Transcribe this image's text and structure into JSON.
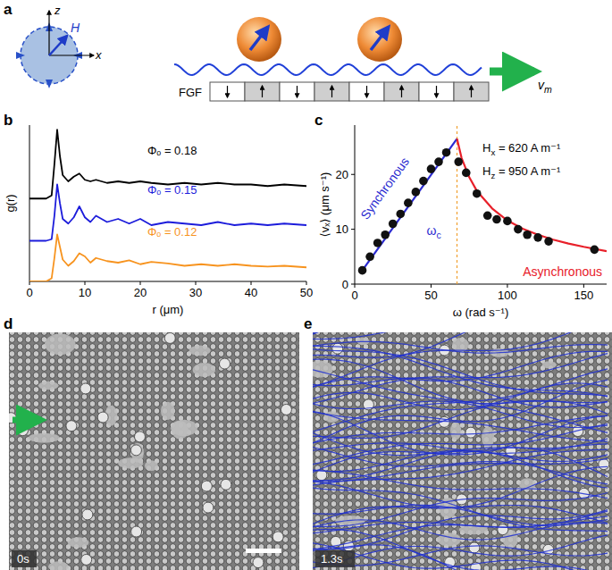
{
  "panel_labels": [
    "a",
    "b",
    "c",
    "d",
    "e"
  ],
  "diagram": {
    "axis_z": "z",
    "axis_x": "x",
    "field": "H",
    "substrate": "FGF",
    "velocity": {
      "main": "v",
      "sub": "m"
    }
  },
  "chart_data": [
    {
      "type": "line",
      "x_label": "r (μm)",
      "y_label": "g(r)",
      "x": [
        0,
        3,
        4,
        4.5,
        5,
        5.5,
        6,
        7,
        8,
        9,
        10,
        11,
        12,
        14,
        16,
        18,
        20,
        22,
        25,
        28,
        31,
        34,
        37,
        40,
        43,
        46,
        50
      ],
      "series": [
        {
          "name": "Φₒ = 0.18",
          "color": "#000000",
          "values": [
            5.3,
            5.3,
            5.5,
            7.5,
            9.7,
            8.0,
            6.8,
            6.4,
            6.7,
            6.9,
            6.5,
            6.4,
            6.5,
            6.3,
            6.4,
            6.3,
            6.4,
            6.3,
            6.2,
            6.3,
            6.2,
            6.3,
            6.2,
            6.2,
            6.1,
            6.2,
            6.1
          ]
        },
        {
          "name": "Φₒ = 0.15",
          "color": "#1c1cdb",
          "values": [
            2.6,
            2.6,
            2.7,
            4.2,
            6.2,
            5.0,
            4.0,
            3.7,
            4.1,
            4.8,
            4.1,
            3.8,
            4.2,
            3.8,
            4.0,
            3.7,
            4.0,
            3.6,
            3.8,
            3.7,
            3.6,
            3.8,
            3.6,
            3.7,
            3.6,
            3.7,
            3.6
          ]
        },
        {
          "name": "Φₒ = 0.12",
          "color": "#f7931e",
          "values": [
            0,
            0,
            0.2,
            1.5,
            3.0,
            2.2,
            1.4,
            1.0,
            1.3,
            1.8,
            1.6,
            1.2,
            1.5,
            1.3,
            1.2,
            1.35,
            1.1,
            1.25,
            1.15,
            1.0,
            1.1,
            1.0,
            1.1,
            1.0,
            0.95,
            1.0,
            0.9
          ]
        }
      ],
      "xlim": [
        0,
        50
      ],
      "xticks": [
        0,
        10,
        20,
        30,
        40,
        50
      ],
      "ylim": [
        0,
        10
      ],
      "tick_labels": "x"
    },
    {
      "type": "scatter",
      "x_label": "ω (rad s⁻¹)",
      "y_label": "⟨vₓ⟩ (μm s⁻¹)",
      "series": [
        {
          "type": "scatter",
          "color": "#111111",
          "marker": "circle",
          "x": [
            5,
            10,
            15,
            20,
            25,
            30,
            35,
            40,
            45,
            50,
            55,
            60,
            68,
            73,
            80,
            87,
            93,
            100,
            107,
            113,
            120,
            127,
            157
          ],
          "values": [
            2.5,
            5,
            7.5,
            9,
            11,
            12.8,
            14.8,
            16.8,
            18.8,
            21,
            22.3,
            24,
            22.3,
            20.3,
            16.5,
            12.5,
            11.8,
            11.5,
            10,
            9,
            8.5,
            7.8,
            6.3
          ]
        },
        {
          "name": "Synchronous",
          "type": "line",
          "color": "#2a2ad0",
          "x": [
            5,
            67
          ],
          "values": [
            2.5,
            26.5
          ]
        },
        {
          "name": "Asynchronous",
          "type": "line",
          "color": "#e8202a",
          "x": [
            67,
            70,
            75,
            80,
            90,
            100,
            110,
            120,
            130,
            140,
            150,
            165
          ],
          "values": [
            26.5,
            23,
            19.5,
            17,
            13.8,
            11.6,
            10.1,
            9,
            8.1,
            7.4,
            6.8,
            6
          ]
        }
      ],
      "critical_frequency": {
        "value": 67,
        "label": {
          "main": "ω",
          "sub": "c"
        },
        "color": "#f0a030",
        "line_style": "dashed"
      },
      "annotations": [
        {
          "main": "H",
          "sub": "x",
          "rest": " = 620 A m⁻¹"
        },
        {
          "main": "H",
          "sub": "z",
          "rest": " = 950 A m⁻¹"
        }
      ],
      "xlim": [
        0,
        165
      ],
      "xticks": [
        0,
        50,
        100,
        150
      ],
      "ylim": [
        0,
        29
      ],
      "yticks": [
        0,
        10,
        20
      ]
    }
  ],
  "images": [
    {
      "time": "0s"
    },
    {
      "time": "1.3s"
    }
  ]
}
